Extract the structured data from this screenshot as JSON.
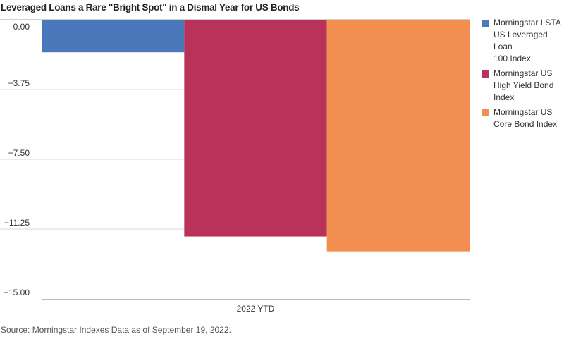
{
  "chart_data": {
    "type": "bar",
    "title": "Leveraged Loans a Rare \"Bright Spot\" in a Dismal Year for US Bonds",
    "categories": [
      "2022 YTD"
    ],
    "series": [
      {
        "name": "Morningstar LSTA US Leveraged Loan 100 Index",
        "values": [
          -1.75
        ],
        "color": "#4a78ba"
      },
      {
        "name": "Morningstar US High Yield Bond Index",
        "values": [
          -11.65
        ],
        "color": "#b8325a"
      },
      {
        "name": "Morningstar US Core Bond Index",
        "values": [
          -12.45
        ],
        "color": "#f28f50"
      }
    ],
    "yticks": [
      "0.00",
      "−3.75",
      "−7.50",
      "−11.25",
      "−15.00"
    ],
    "ylim": [
      -15,
      0
    ],
    "grid": true,
    "legend_position": "right"
  },
  "source": "Source: Morningstar Indexes Data as of September 19, 2022."
}
